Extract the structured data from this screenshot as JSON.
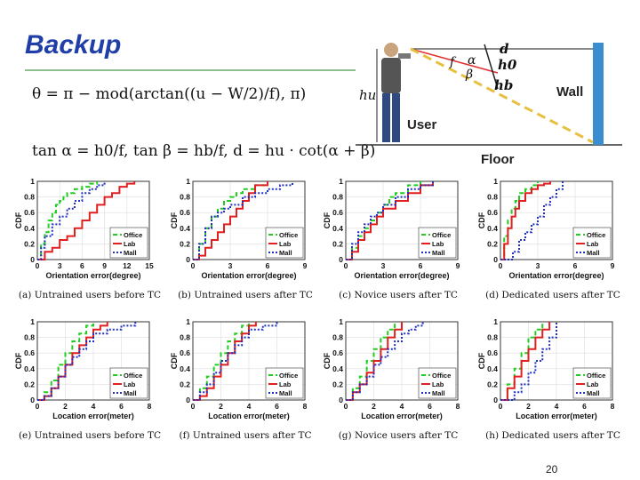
{
  "slide": {
    "title": "Backup",
    "page_number": "20",
    "formula1": "θ = π − mod(arctan((u − W/2)/f), π)",
    "formula2": "tan α = h0/f, tan β = hb/f, d = hu · cot(α + β)"
  },
  "diagram": {
    "user_label": "User",
    "wall_label": "Wall",
    "floor_label": "Floor",
    "labels": [
      "d",
      "h0",
      "hb",
      "hu",
      "α",
      "β",
      "f"
    ]
  },
  "chart_data": [
    {
      "type": "line",
      "caption": "(a) Untrained users before TC",
      "xlabel": "Orientation error(degree)",
      "ylabel": "CDF",
      "xticks": [
        0,
        3,
        6,
        9,
        12,
        15
      ],
      "yticks": [
        0,
        0.2,
        0.4,
        0.6,
        0.8,
        1
      ],
      "xlim": [
        0,
        15
      ],
      "ylim": [
        0,
        1
      ],
      "legend": "bottom-right",
      "series": [
        {
          "name": "Office",
          "color": "#22cc22",
          "dash": "5,3",
          "x": [
            0,
            0.5,
            1,
            1.5,
            2,
            2.5,
            3,
            3.5,
            4,
            5,
            6,
            7,
            8
          ],
          "y": [
            0,
            0.2,
            0.35,
            0.5,
            0.6,
            0.7,
            0.75,
            0.8,
            0.85,
            0.9,
            0.93,
            0.97,
            1
          ]
        },
        {
          "name": "Lab",
          "color": "#e02020",
          "dash": "",
          "x": [
            0,
            1,
            2,
            3,
            4,
            5,
            6,
            7,
            8,
            9,
            10,
            11,
            12,
            13
          ],
          "y": [
            0,
            0.1,
            0.15,
            0.25,
            0.3,
            0.4,
            0.5,
            0.6,
            0.7,
            0.8,
            0.85,
            0.93,
            0.97,
            1
          ]
        },
        {
          "name": "Mall",
          "color": "#2030c0",
          "dash": "2,2",
          "x": [
            0,
            0.5,
            1,
            2,
            3,
            4,
            5,
            6,
            7,
            8,
            9
          ],
          "y": [
            0,
            0.15,
            0.3,
            0.45,
            0.55,
            0.65,
            0.75,
            0.85,
            0.9,
            0.95,
            1
          ]
        }
      ]
    },
    {
      "type": "line",
      "caption": "(b) Untrained users after TC",
      "xlabel": "Orientation error(degree)",
      "ylabel": "CDF",
      "xticks": [
        0,
        3,
        6,
        9
      ],
      "yticks": [
        0,
        0.2,
        0.4,
        0.6,
        0.8,
        1
      ],
      "xlim": [
        0,
        9
      ],
      "ylim": [
        0,
        1
      ],
      "legend": "bottom-right",
      "series": [
        {
          "name": "Office",
          "color": "#22cc22",
          "dash": "5,3",
          "x": [
            0,
            0.5,
            1,
            1.5,
            2,
            2.5,
            3,
            3.5,
            4,
            5,
            6
          ],
          "y": [
            0,
            0.2,
            0.4,
            0.55,
            0.65,
            0.75,
            0.8,
            0.85,
            0.9,
            0.95,
            1
          ]
        },
        {
          "name": "Lab",
          "color": "#e02020",
          "dash": "",
          "x": [
            0,
            0.5,
            1,
            1.5,
            2,
            2.5,
            3,
            3.5,
            4,
            4.5,
            5,
            6
          ],
          "y": [
            0,
            0.05,
            0.15,
            0.25,
            0.35,
            0.45,
            0.55,
            0.65,
            0.75,
            0.85,
            0.95,
            1
          ]
        },
        {
          "name": "Mall",
          "color": "#2030c0",
          "dash": "2,2",
          "x": [
            0,
            0.5,
            1,
            1.5,
            2,
            2.5,
            3,
            4,
            5,
            6,
            7,
            8
          ],
          "y": [
            0,
            0.2,
            0.4,
            0.55,
            0.6,
            0.65,
            0.7,
            0.8,
            0.85,
            0.9,
            0.95,
            1
          ]
        }
      ]
    },
    {
      "type": "line",
      "caption": "(c) Novice users after TC",
      "xlabel": "Orientation error(degree)",
      "ylabel": "CDF",
      "xticks": [
        0,
        3,
        6,
        9
      ],
      "yticks": [
        0,
        0.2,
        0.4,
        0.6,
        0.8,
        1
      ],
      "xlim": [
        0,
        9
      ],
      "ylim": [
        0,
        1
      ],
      "legend": "bottom-right",
      "series": [
        {
          "name": "Office",
          "color": "#22cc22",
          "dash": "5,3",
          "x": [
            0,
            0.5,
            1,
            1.5,
            2,
            2.5,
            3,
            3.5,
            4,
            5,
            6
          ],
          "y": [
            0,
            0.15,
            0.3,
            0.4,
            0.5,
            0.6,
            0.7,
            0.8,
            0.85,
            0.95,
            1
          ]
        },
        {
          "name": "Lab",
          "color": "#e02020",
          "dash": "",
          "x": [
            0,
            0.5,
            1,
            1.5,
            2,
            2.5,
            3,
            4,
            5,
            6,
            7
          ],
          "y": [
            0,
            0.1,
            0.25,
            0.35,
            0.45,
            0.55,
            0.65,
            0.75,
            0.85,
            0.95,
            1
          ]
        },
        {
          "name": "Mall",
          "color": "#2030c0",
          "dash": "2,2",
          "x": [
            0,
            0.5,
            1,
            1.5,
            2,
            2.5,
            3,
            4,
            5,
            6,
            7
          ],
          "y": [
            0,
            0.2,
            0.35,
            0.45,
            0.55,
            0.6,
            0.7,
            0.8,
            0.9,
            0.95,
            1
          ]
        }
      ]
    },
    {
      "type": "line",
      "caption": "(d) Dedicated users after TC",
      "xlabel": "Orientation error(degree)",
      "ylabel": "CDF",
      "xticks": [
        0,
        3,
        6,
        9
      ],
      "yticks": [
        0,
        0.2,
        0.4,
        0.6,
        0.8,
        1
      ],
      "xlim": [
        0,
        9
      ],
      "ylim": [
        0,
        1
      ],
      "legend": "bottom-right",
      "series": [
        {
          "name": "Office",
          "color": "#22cc22",
          "dash": "5,3",
          "x": [
            0,
            0.3,
            0.6,
            0.9,
            1.2,
            1.5,
            2,
            2.5,
            3
          ],
          "y": [
            0,
            0.3,
            0.5,
            0.65,
            0.75,
            0.85,
            0.9,
            0.95,
            1
          ]
        },
        {
          "name": "Lab",
          "color": "#e02020",
          "dash": "",
          "x": [
            0,
            0.3,
            0.6,
            0.9,
            1.2,
            1.5,
            2,
            2.5,
            3,
            3.5,
            4
          ],
          "y": [
            0,
            0.2,
            0.4,
            0.55,
            0.65,
            0.75,
            0.85,
            0.9,
            0.95,
            0.97,
            1
          ]
        },
        {
          "name": "Mall",
          "color": "#2030c0",
          "dash": "2,2",
          "x": [
            0,
            1,
            1.5,
            2,
            2.5,
            3,
            3.5,
            4,
            4.5,
            5
          ],
          "y": [
            0,
            0.1,
            0.25,
            0.35,
            0.45,
            0.55,
            0.7,
            0.8,
            0.9,
            1
          ]
        }
      ]
    },
    {
      "type": "line",
      "caption": "(e) Untrained users before TC",
      "xlabel": "Location error(meter)",
      "ylabel": "CDF",
      "xticks": [
        0,
        2,
        4,
        6,
        8
      ],
      "yticks": [
        0,
        0.2,
        0.4,
        0.6,
        0.8,
        1
      ],
      "xlim": [
        0,
        8
      ],
      "ylim": [
        0,
        1
      ],
      "legend": "bottom-right",
      "series": [
        {
          "name": "Office",
          "color": "#22cc22",
          "dash": "5,3",
          "x": [
            0,
            0.5,
            1,
            1.5,
            2,
            2.5,
            3,
            3.5,
            4
          ],
          "y": [
            0,
            0.1,
            0.25,
            0.45,
            0.6,
            0.75,
            0.85,
            0.95,
            1
          ]
        },
        {
          "name": "Lab",
          "color": "#e02020",
          "dash": "",
          "x": [
            0,
            0.5,
            1,
            1.5,
            2,
            2.5,
            3,
            3.5,
            4,
            4.5,
            5
          ],
          "y": [
            0,
            0.05,
            0.15,
            0.3,
            0.45,
            0.6,
            0.7,
            0.8,
            0.9,
            0.95,
            1
          ]
        },
        {
          "name": "Mall",
          "color": "#2030c0",
          "dash": "2,2",
          "x": [
            0,
            0.5,
            1,
            1.5,
            2,
            2.5,
            3,
            3.5,
            4,
            5,
            6,
            7
          ],
          "y": [
            0,
            0.05,
            0.15,
            0.3,
            0.45,
            0.55,
            0.65,
            0.75,
            0.85,
            0.9,
            0.95,
            1
          ]
        }
      ]
    },
    {
      "type": "line",
      "caption": "(f) Untrained users after TC",
      "xlabel": "Location error(meter)",
      "ylabel": "CDF",
      "xticks": [
        0,
        2,
        4,
        6,
        8
      ],
      "yticks": [
        0,
        0.2,
        0.4,
        0.6,
        0.8,
        1
      ],
      "xlim": [
        0,
        8
      ],
      "ylim": [
        0,
        1
      ],
      "legend": "bottom-right",
      "series": [
        {
          "name": "Office",
          "color": "#22cc22",
          "dash": "5,3",
          "x": [
            0,
            0.5,
            1,
            1.5,
            2,
            2.5,
            3,
            3.5,
            4
          ],
          "y": [
            0,
            0.15,
            0.3,
            0.45,
            0.6,
            0.75,
            0.85,
            0.95,
            1
          ]
        },
        {
          "name": "Lab",
          "color": "#e02020",
          "dash": "",
          "x": [
            0,
            0.5,
            1,
            1.5,
            2,
            2.5,
            3,
            3.5,
            4,
            4.5
          ],
          "y": [
            0,
            0.05,
            0.15,
            0.3,
            0.45,
            0.6,
            0.75,
            0.85,
            0.95,
            1
          ]
        },
        {
          "name": "Mall",
          "color": "#2030c0",
          "dash": "2,2",
          "x": [
            0,
            0.5,
            1,
            1.5,
            2,
            2.5,
            3,
            3.5,
            4,
            5,
            6
          ],
          "y": [
            0,
            0.1,
            0.2,
            0.35,
            0.5,
            0.6,
            0.7,
            0.8,
            0.9,
            0.95,
            1
          ]
        }
      ]
    },
    {
      "type": "line",
      "caption": "(g) Novice users after TC",
      "xlabel": "Location error(meter)",
      "ylabel": "CDF",
      "xticks": [
        0,
        2,
        4,
        6,
        8
      ],
      "yticks": [
        0,
        0.2,
        0.4,
        0.6,
        0.8,
        1
      ],
      "xlim": [
        0,
        8
      ],
      "ylim": [
        0,
        1
      ],
      "legend": "bottom-right",
      "series": [
        {
          "name": "Office",
          "color": "#22cc22",
          "dash": "5,3",
          "x": [
            0,
            0.5,
            1,
            1.5,
            2,
            2.5,
            3,
            3.5
          ],
          "y": [
            0,
            0.15,
            0.3,
            0.5,
            0.65,
            0.8,
            0.9,
            1
          ]
        },
        {
          "name": "Lab",
          "color": "#e02020",
          "dash": "",
          "x": [
            0,
            0.5,
            1,
            1.5,
            2,
            2.5,
            3,
            3.5,
            4
          ],
          "y": [
            0,
            0.1,
            0.2,
            0.35,
            0.5,
            0.65,
            0.8,
            0.9,
            1
          ]
        },
        {
          "name": "Mall",
          "color": "#2030c0",
          "dash": "2,2",
          "x": [
            0,
            0.5,
            1,
            1.5,
            2,
            2.5,
            3,
            3.5,
            4,
            4.5,
            5,
            5.5
          ],
          "y": [
            0,
            0.1,
            0.2,
            0.3,
            0.45,
            0.55,
            0.65,
            0.75,
            0.85,
            0.9,
            0.95,
            1
          ]
        }
      ]
    },
    {
      "type": "line",
      "caption": "(h) Dedicated users after TC",
      "xlabel": "Location error(meter)",
      "ylabel": "CDF",
      "xticks": [
        0,
        2,
        4,
        6,
        8
      ],
      "yticks": [
        0,
        0.2,
        0.4,
        0.6,
        0.8,
        1
      ],
      "xlim": [
        0,
        8
      ],
      "ylim": [
        0,
        1
      ],
      "legend": "bottom-right",
      "series": [
        {
          "name": "Office",
          "color": "#22cc22",
          "dash": "5,3",
          "x": [
            0,
            0.5,
            1,
            1.5,
            2,
            2.5,
            3
          ],
          "y": [
            0,
            0.2,
            0.4,
            0.6,
            0.8,
            0.9,
            1
          ]
        },
        {
          "name": "Lab",
          "color": "#e02020",
          "dash": "",
          "x": [
            0,
            0.5,
            1,
            1.5,
            2,
            2.5,
            3,
            3.5
          ],
          "y": [
            0,
            0.15,
            0.3,
            0.5,
            0.65,
            0.8,
            0.9,
            1
          ]
        },
        {
          "name": "Mall",
          "color": "#2030c0",
          "dash": "2,2",
          "x": [
            0,
            1,
            1.5,
            2,
            2.5,
            3,
            3.5,
            4
          ],
          "y": [
            0,
            0.1,
            0.2,
            0.35,
            0.5,
            0.65,
            0.8,
            1
          ]
        }
      ]
    }
  ]
}
